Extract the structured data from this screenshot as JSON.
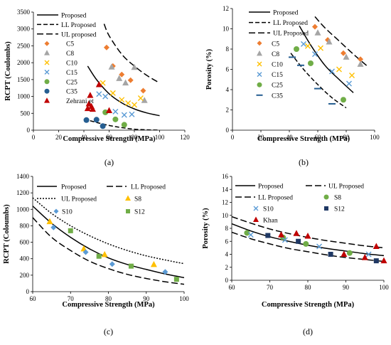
{
  "charts": [
    {
      "id": "a",
      "type": "scatter",
      "panel_label": "(a)",
      "xlabel": "Compressive Strength (MPa)",
      "ylabel": "RCPT (Coulombs)",
      "xlim": [
        0,
        120
      ],
      "ylim": [
        0,
        3500
      ],
      "xticks": [
        0,
        20,
        40,
        60,
        80,
        100,
        120
      ],
      "yticks": [
        0,
        500,
        1000,
        1500,
        2000,
        2500,
        3000,
        3500
      ],
      "grid": false,
      "legend_position": "top-left",
      "curves": [
        {
          "name": "Proposed",
          "style": "solid",
          "x": [
            43,
            50,
            60,
            70,
            80,
            90,
            100
          ],
          "y": [
            1900,
            1500,
            1080,
            810,
            630,
            510,
            430
          ]
        },
        {
          "name": "LL Proposed",
          "style": "shortdash",
          "x": [
            40,
            50,
            60,
            70,
            80,
            90,
            100
          ],
          "y": [
            330,
            230,
            140,
            75,
            30,
            10,
            0
          ]
        },
        {
          "name": "UL proposed",
          "style": "longdash",
          "x": [
            56,
            60,
            70,
            80,
            90,
            100
          ],
          "y": [
            3150,
            2800,
            2250,
            1900,
            1620,
            1400
          ]
        }
      ],
      "series": [
        {
          "name": "C5",
          "marker": "diamond",
          "color": "#ED7D31",
          "x": [
            58,
            63,
            70,
            77,
            87
          ],
          "y": [
            2450,
            1900,
            1650,
            1480,
            1170
          ]
        },
        {
          "name": "C8",
          "marker": "triangle",
          "color": "#A5A5A5",
          "x": [
            62,
            68,
            73,
            80,
            88
          ],
          "y": [
            1870,
            1530,
            1400,
            1860,
            880
          ]
        },
        {
          "name": "C10",
          "marker": "x",
          "color": "#FFC000",
          "x": [
            55,
            63,
            70,
            75,
            80,
            85
          ],
          "y": [
            1400,
            1100,
            900,
            800,
            750,
            950
          ]
        },
        {
          "name": "C15",
          "marker": "x",
          "color": "#5B9BD5",
          "x": [
            52,
            57,
            65,
            72,
            78
          ],
          "y": [
            1070,
            1000,
            550,
            450,
            470
          ]
        },
        {
          "name": "C25",
          "marker": "circle",
          "color": "#70AD47",
          "x": [
            57,
            65,
            72
          ],
          "y": [
            530,
            320,
            160
          ]
        },
        {
          "name": "C35",
          "marker": "circle",
          "color": "#255E91",
          "x": [
            42,
            50,
            55
          ],
          "y": [
            300,
            310,
            120
          ]
        },
        {
          "name": "Zehrani et",
          "marker": "triangle",
          "color": "#C00000",
          "x": [
            43,
            44,
            45,
            46,
            47,
            52,
            60
          ],
          "y": [
            640,
            780,
            1030,
            700,
            620,
            1350,
            580
          ]
        }
      ]
    },
    {
      "id": "b",
      "type": "scatter",
      "panel_label": "(b)",
      "xlabel": "Compressive Strength (MPa)",
      "ylabel": "Porosity (%)",
      "xlim": [
        0,
        100
      ],
      "ylim": [
        0,
        12
      ],
      "xticks": [
        0,
        20,
        40,
        60,
        80,
        100
      ],
      "yticks": [
        0,
        2,
        4,
        6,
        8,
        10,
        12
      ],
      "grid": false,
      "legend_position": "top-left",
      "curves": [
        {
          "name": "Proposed",
          "style": "solid",
          "x": [
            47,
            55,
            65,
            75,
            85
          ],
          "y": [
            10.3,
            8.4,
            6.4,
            5.0,
            3.7
          ]
        },
        {
          "name": "LL Proposed",
          "style": "shortdash",
          "x": [
            41,
            50,
            60,
            70,
            80
          ],
          "y": [
            7.6,
            6.0,
            4.5,
            3.2,
            2.2
          ]
        },
        {
          "name": "UL Proposed",
          "style": "longdash",
          "x": [
            58,
            65,
            75,
            85,
            95
          ],
          "y": [
            11.2,
            10.1,
            8.8,
            7.5,
            6.3
          ]
        }
      ],
      "series": [
        {
          "name": "C5",
          "marker": "diamond",
          "color": "#ED7D31",
          "x": [
            58,
            67,
            78,
            90
          ],
          "y": [
            10.2,
            8.9,
            7.6,
            7.0
          ]
        },
        {
          "name": "C8",
          "marker": "triangle",
          "color": "#A5A5A5",
          "x": [
            60,
            68,
            80,
            90
          ],
          "y": [
            9.6,
            8.7,
            7.2,
            6.5
          ]
        },
        {
          "name": "C10",
          "marker": "x",
          "color": "#FFC000",
          "x": [
            53,
            62,
            75,
            84
          ],
          "y": [
            8.3,
            8.1,
            6.0,
            5.4
          ]
        },
        {
          "name": "C15",
          "marker": "x",
          "color": "#5B9BD5",
          "x": [
            50,
            58,
            70,
            82
          ],
          "y": [
            8.5,
            7.5,
            5.8,
            4.6
          ]
        },
        {
          "name": "C25",
          "marker": "circle",
          "color": "#70AD47",
          "x": [
            45,
            55,
            78
          ],
          "y": [
            8.0,
            6.6,
            3.0
          ]
        },
        {
          "name": "C35",
          "marker": "dash",
          "color": "#255E91",
          "x": [
            42,
            48,
            60,
            70
          ],
          "y": [
            7.2,
            6.4,
            4.1,
            2.6
          ]
        }
      ]
    },
    {
      "id": "c",
      "type": "scatter",
      "panel_label": "(c)",
      "xlabel": "Compressive Strength (MPa)",
      "ylabel": "RCPT (Coloumbs)",
      "xlim": [
        60,
        100
      ],
      "ylim": [
        0,
        1400
      ],
      "xticks": [
        60,
        70,
        80,
        90,
        100
      ],
      "yticks": [
        0,
        200,
        400,
        600,
        800,
        1000,
        1200,
        1400
      ],
      "grid": false,
      "legend_position": "top",
      "curves": [
        {
          "name": "Proposed",
          "style": "solid",
          "x": [
            60,
            65,
            70,
            75,
            80,
            85,
            90,
            95,
            100
          ],
          "y": [
            1040,
            830,
            660,
            520,
            410,
            330,
            270,
            215,
            170
          ]
        },
        {
          "name": "LL Proposed",
          "style": "longdash",
          "x": [
            60,
            65,
            70,
            75,
            80,
            85,
            90,
            95,
            100
          ],
          "y": [
            900,
            660,
            500,
            370,
            280,
            210,
            160,
            120,
            90
          ]
        },
        {
          "name": "UL Proposed",
          "style": "dotted",
          "x": [
            60,
            65,
            70,
            75,
            80,
            85,
            90,
            95,
            100
          ],
          "y": [
            1140,
            950,
            800,
            680,
            580,
            500,
            435,
            385,
            340
          ]
        }
      ],
      "series": [
        {
          "name": "S8",
          "marker": "triangle",
          "color": "#FFC000",
          "x": [
            64.5,
            73.5,
            79,
            92
          ],
          "y": [
            850,
            520,
            450,
            330
          ]
        },
        {
          "name": "S10",
          "marker": "diamond",
          "color": "#5B9BD5",
          "x": [
            65.5,
            74,
            81,
            95
          ],
          "y": [
            780,
            480,
            335,
            240
          ]
        },
        {
          "name": "S12",
          "marker": "square",
          "color": "#70AD47",
          "x": [
            70,
            77.5,
            86,
            98
          ],
          "y": [
            740,
            430,
            310,
            150
          ]
        }
      ]
    },
    {
      "id": "d",
      "type": "scatter",
      "panel_label": "(d)",
      "xlabel": "Compressive Strength (MPa)",
      "ylabel": "Porosity (%)",
      "xlim": [
        60,
        100
      ],
      "ylim": [
        0,
        16
      ],
      "xticks": [
        60,
        70,
        80,
        90,
        100
      ],
      "yticks": [
        0,
        2,
        4,
        6,
        8,
        10,
        12,
        14,
        16
      ],
      "grid": false,
      "legend_position": "top",
      "curves": [
        {
          "name": "Proposed",
          "style": "solid",
          "x": [
            60,
            65,
            70,
            75,
            80,
            85,
            90,
            95,
            100
          ],
          "y": [
            8.7,
            7.6,
            6.7,
            6.0,
            5.4,
            4.9,
            4.5,
            4.1,
            3.8
          ]
        },
        {
          "name": "UL Proposed",
          "style": "longdash",
          "x": [
            60,
            65,
            70,
            75,
            80,
            85,
            90,
            95,
            100
          ],
          "y": [
            9.8,
            8.8,
            7.9,
            7.2,
            6.6,
            6.1,
            5.7,
            5.3,
            5.0
          ]
        },
        {
          "name": "LL Proposed",
          "style": "longdash",
          "x": [
            60,
            65,
            70,
            75,
            80,
            85,
            90,
            95,
            100
          ],
          "y": [
            7.4,
            6.4,
            5.6,
            4.9,
            4.4,
            3.9,
            3.5,
            3.2,
            2.9
          ]
        }
      ],
      "series": [
        {
          "name": "S8",
          "marker": "circle",
          "color": "#70AD47",
          "x": [
            64,
            73.5,
            79.5,
            91
          ],
          "y": [
            7.3,
            6.6,
            5.6,
            4.2
          ]
        },
        {
          "name": "S10",
          "marker": "x",
          "color": "#5B9BD5",
          "x": [
            65,
            74,
            83,
            96
          ],
          "y": [
            7.0,
            6.2,
            5.2,
            4.0
          ]
        },
        {
          "name": "S12",
          "marker": "square",
          "color": "#1F3864",
          "x": [
            69.5,
            77.5,
            86,
            98
          ],
          "y": [
            6.9,
            6.0,
            4.0,
            3.0
          ]
        },
        {
          "name": "Khan",
          "marker": "triangle",
          "color": "#C00000",
          "x": [
            73,
            77,
            80,
            89.5,
            95,
            98,
            100
          ],
          "y": [
            7.0,
            7.2,
            6.8,
            4.0,
            3.5,
            5.2,
            3.0
          ]
        }
      ]
    }
  ]
}
